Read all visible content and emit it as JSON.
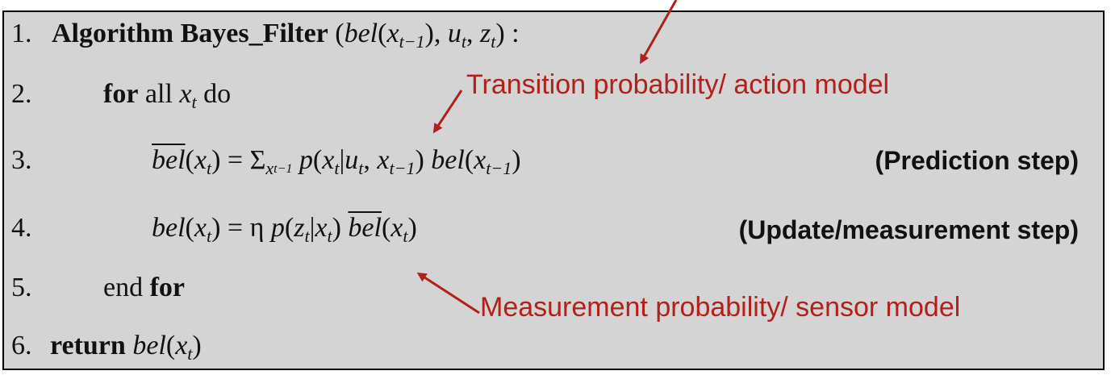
{
  "colors": {
    "background": "#d4d4d4",
    "border": "#000000",
    "annotation": "#b0211b",
    "text": "#111111"
  },
  "lines": [
    {
      "num": "1.",
      "kw": "Algorithm Bayes_Filter",
      "open": "(",
      "bel": "bel",
      "x": "x",
      "tminus1": "t−1",
      "closeComma": "),",
      "u": "u",
      "t": "t",
      "comma": ",",
      "z": "z",
      "close": ") :"
    },
    {
      "num": "2.",
      "kw": "for",
      "text": "all",
      "x": "x",
      "t": "t",
      "do": "do"
    },
    {
      "num": "3.",
      "belbar": "bel",
      "x": "x",
      "t": "t",
      "eq": ") = Σ",
      "xsub": "x",
      "tminus1": "t−1",
      "p": "p",
      "given": "|",
      "u": "u",
      "comma": ",",
      "bel": "bel",
      "close": ")"
    },
    {
      "num": "4.",
      "bel": "bel",
      "x": "x",
      "t": "t",
      "eq": ") = η",
      "p": "p",
      "z": "z",
      "given": "|",
      "belbar": "bel",
      "close": ")"
    },
    {
      "num": "5.",
      "text": "end",
      "kw": "for"
    },
    {
      "num": "6.",
      "kw": "return",
      "bel": "bel",
      "x": "x",
      "t": "t",
      "close": ")"
    }
  ],
  "annotations": {
    "transition": "Transition probability/ action model",
    "measurement": "Measurement probability/ sensor model"
  },
  "steps": {
    "prediction": "(Prediction step)",
    "update": "(Update/measurement step)"
  }
}
